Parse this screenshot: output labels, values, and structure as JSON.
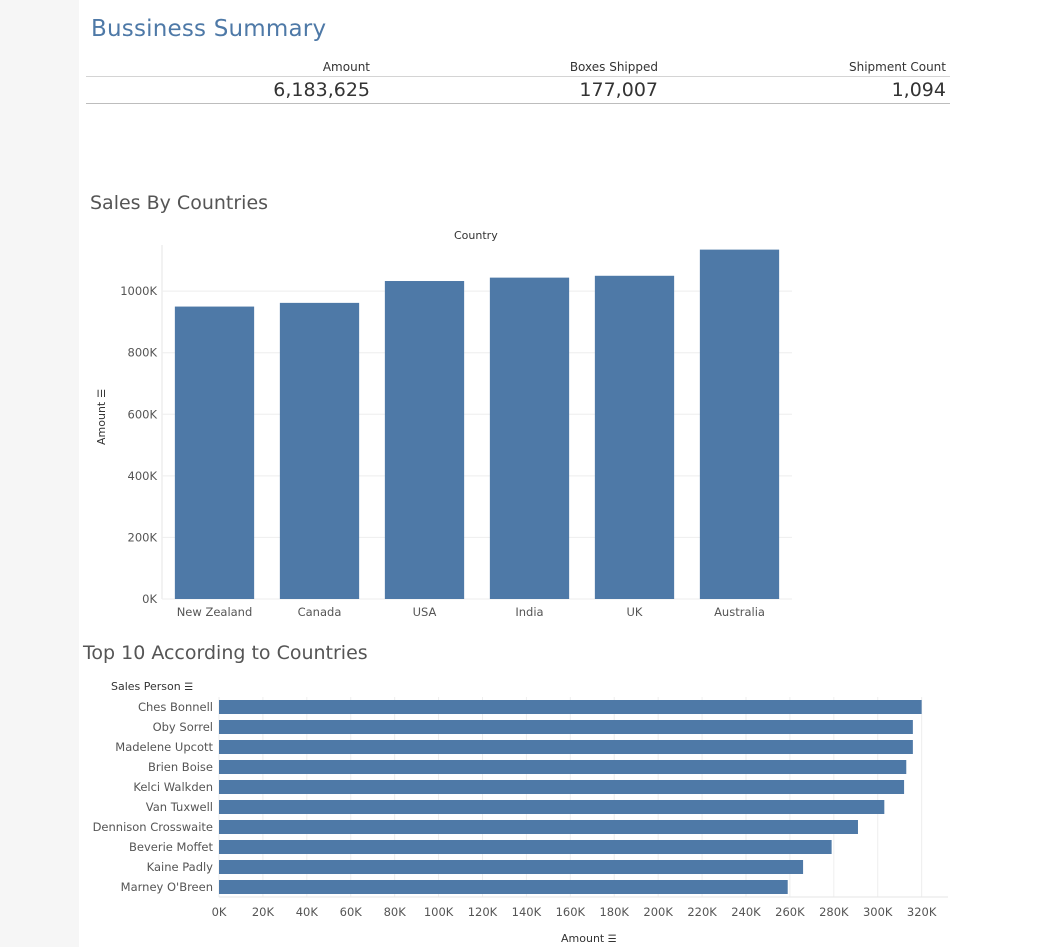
{
  "page": {
    "title": "Bussiness Summary"
  },
  "summary": {
    "columns": [
      {
        "label": "Amount",
        "value": "6,183,625"
      },
      {
        "label": "Boxes Shipped",
        "value": "177,007"
      },
      {
        "label": "Shipment Count",
        "value": "1,094"
      }
    ]
  },
  "sales_by_countries": {
    "title": "Sales By Countries",
    "x_title": "Country",
    "y_title": "Amount",
    "sort_icon": "sort-descending-icon"
  },
  "top10": {
    "title": "Top 10 According to Countries",
    "row_header": "Sales Person",
    "x_title": "Amount",
    "sort_icon": "sort-descending-icon"
  },
  "colors": {
    "bar": "#4e79a7",
    "title": "#4e79a7",
    "grid": "#eeeeee"
  },
  "chart_data": [
    {
      "type": "bar",
      "title": "Sales By Countries",
      "xlabel": "Country",
      "ylabel": "Amount",
      "categories": [
        "New Zealand",
        "Canada",
        "USA",
        "India",
        "UK",
        "Australia"
      ],
      "values": [
        950000,
        962000,
        1033000,
        1044000,
        1050000,
        1135000
      ],
      "ylim": [
        0,
        1150000
      ],
      "yticks": [
        0,
        200000,
        400000,
        600000,
        800000,
        1000000
      ],
      "yticklabels": [
        "0K",
        "200K",
        "400K",
        "600K",
        "800K",
        "1000K"
      ],
      "grid": true
    },
    {
      "type": "bar",
      "orientation": "horizontal",
      "title": "Top 10 According to Countries",
      "ylabel": "Sales Person",
      "xlabel": "Amount",
      "categories": [
        "Ches Bonnell",
        "Oby Sorrel",
        "Madelene Upcott",
        "Brien Boise",
        "Kelci Walkden",
        "Van Tuxwell",
        "Dennison Crosswaite",
        "Beverie Moffet",
        "Kaine Padly",
        "Marney O'Breen"
      ],
      "values": [
        320000,
        316000,
        316000,
        313000,
        312000,
        303000,
        291000,
        279000,
        266000,
        259000
      ],
      "xlim": [
        0,
        332000
      ],
      "xticks": [
        0,
        20000,
        40000,
        60000,
        80000,
        100000,
        120000,
        140000,
        160000,
        180000,
        200000,
        220000,
        240000,
        260000,
        280000,
        300000,
        320000
      ],
      "xticklabels": [
        "0K",
        "20K",
        "40K",
        "60K",
        "80K",
        "100K",
        "120K",
        "140K",
        "160K",
        "180K",
        "200K",
        "220K",
        "240K",
        "260K",
        "280K",
        "300K",
        "320K"
      ],
      "grid": true
    }
  ]
}
